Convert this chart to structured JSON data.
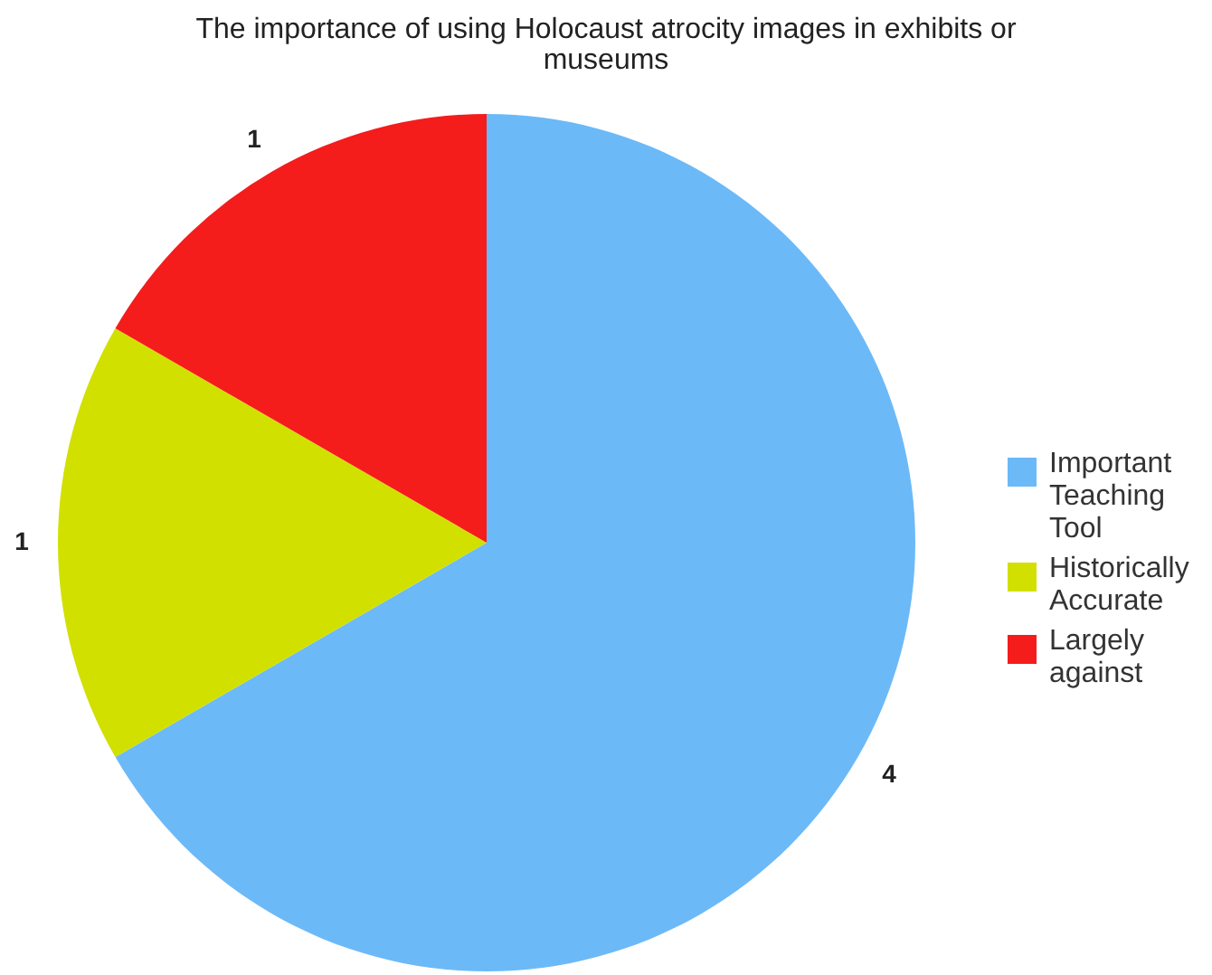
{
  "chart_data": {
    "type": "pie",
    "title": "The importance of using Holocaust atrocity images in exhibits or museums",
    "categories": [
      "Important Teaching Tool",
      "Historically Accurate",
      "Largely against"
    ],
    "values": [
      4,
      1,
      1
    ],
    "colors": [
      "#6cb9f8",
      "#d2e000",
      "#f51c1c"
    ],
    "data_labels": true,
    "legend": "right"
  }
}
